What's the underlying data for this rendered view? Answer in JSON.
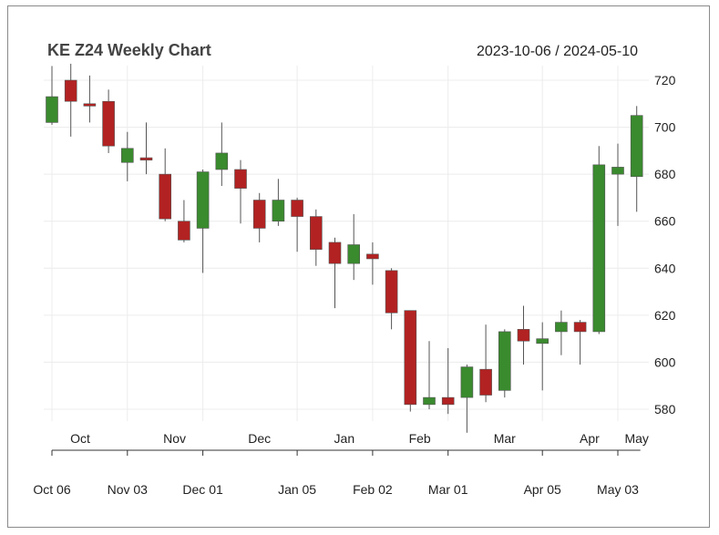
{
  "chart_data": {
    "type": "candlestick",
    "title": "KE Z24 Weekly Chart",
    "date_range": "2023-10-06 / 2024-05-10",
    "xlabel": "",
    "ylabel": "",
    "ylim": [
      570,
      725
    ],
    "y_ticks": [
      "720",
      "700",
      "680",
      "660",
      "640",
      "620",
      "600",
      "580"
    ],
    "y_tick_values": [
      720,
      700,
      680,
      660,
      640,
      620,
      600,
      580
    ],
    "grid": true,
    "up_color": "#3a8a2e",
    "down_color": "#b22222",
    "x_month_labels": [
      {
        "label": "Oct",
        "week": 1.5
      },
      {
        "label": "Nov",
        "week": 6.5
      },
      {
        "label": "Dec",
        "week": 11
      },
      {
        "label": "Jan",
        "week": 15.5
      },
      {
        "label": "Feb",
        "week": 19.5
      },
      {
        "label": "Mar",
        "week": 24
      },
      {
        "label": "Apr",
        "week": 28.5
      },
      {
        "label": "May",
        "week": 31
      }
    ],
    "x_date_labels": [
      {
        "label": "Oct 06",
        "week": 0
      },
      {
        "label": "Nov 03",
        "week": 4
      },
      {
        "label": "Dec 01",
        "week": 8
      },
      {
        "label": "Jan 05",
        "week": 13
      },
      {
        "label": "Feb 02",
        "week": 17
      },
      {
        "label": "Mar 01",
        "week": 21
      },
      {
        "label": "Apr 05",
        "week": 26
      },
      {
        "label": "May 03",
        "week": 30
      }
    ],
    "x_month_ticks": [
      0,
      4,
      8,
      13,
      17,
      21,
      26,
      30
    ],
    "candles": [
      {
        "date": "2023-10-06",
        "open": 702,
        "high": 726,
        "low": 701,
        "close": 713
      },
      {
        "date": "2023-10-13",
        "open": 720,
        "high": 727,
        "low": 696,
        "close": 711
      },
      {
        "date": "2023-10-20",
        "open": 710,
        "high": 722,
        "low": 702,
        "close": 709
      },
      {
        "date": "2023-10-27",
        "open": 711,
        "high": 716,
        "low": 689,
        "close": 692
      },
      {
        "date": "2023-11-03",
        "open": 685,
        "high": 698,
        "low": 677,
        "close": 691
      },
      {
        "date": "2023-11-10",
        "open": 687,
        "high": 702,
        "low": 680,
        "close": 686
      },
      {
        "date": "2023-11-17",
        "open": 680,
        "high": 691,
        "low": 660,
        "close": 661
      },
      {
        "date": "2023-11-24",
        "open": 660,
        "high": 669,
        "low": 651,
        "close": 652
      },
      {
        "date": "2023-12-01",
        "open": 657,
        "high": 682,
        "low": 638,
        "close": 681
      },
      {
        "date": "2023-12-08",
        "open": 682,
        "high": 702,
        "low": 675,
        "close": 689
      },
      {
        "date": "2023-12-15",
        "open": 682,
        "high": 686,
        "low": 659,
        "close": 674
      },
      {
        "date": "2023-12-22",
        "open": 669,
        "high": 672,
        "low": 651,
        "close": 657
      },
      {
        "date": "2023-12-29",
        "open": 660,
        "high": 678,
        "low": 658,
        "close": 669
      },
      {
        "date": "2024-01-05",
        "open": 669,
        "high": 670,
        "low": 647,
        "close": 662
      },
      {
        "date": "2024-01-12",
        "open": 662,
        "high": 665,
        "low": 641,
        "close": 648
      },
      {
        "date": "2024-01-19",
        "open": 651,
        "high": 653,
        "low": 623,
        "close": 642
      },
      {
        "date": "2024-01-26",
        "open": 642,
        "high": 663,
        "low": 635,
        "close": 650
      },
      {
        "date": "2024-02-02",
        "open": 646,
        "high": 651,
        "low": 633,
        "close": 644
      },
      {
        "date": "2024-02-09",
        "open": 639,
        "high": 640,
        "low": 614,
        "close": 621
      },
      {
        "date": "2024-02-16",
        "open": 622,
        "high": 622,
        "low": 579,
        "close": 582
      },
      {
        "date": "2024-02-23",
        "open": 582,
        "high": 609,
        "low": 580,
        "close": 585
      },
      {
        "date": "2024-03-01",
        "open": 585,
        "high": 606,
        "low": 578,
        "close": 582
      },
      {
        "date": "2024-03-08",
        "open": 585,
        "high": 599,
        "low": 570,
        "close": 598
      },
      {
        "date": "2024-03-15",
        "open": 597,
        "high": 616,
        "low": 583,
        "close": 586
      },
      {
        "date": "2024-03-22",
        "open": 588,
        "high": 614,
        "low": 585,
        "close": 613
      },
      {
        "date": "2024-03-29",
        "open": 614,
        "high": 624,
        "low": 599,
        "close": 609
      },
      {
        "date": "2024-04-05",
        "open": 608,
        "high": 617,
        "low": 588,
        "close": 610
      },
      {
        "date": "2024-04-12",
        "open": 613,
        "high": 622,
        "low": 603,
        "close": 617
      },
      {
        "date": "2024-04-19",
        "open": 617,
        "high": 618,
        "low": 599,
        "close": 613
      },
      {
        "date": "2024-04-26",
        "open": 613,
        "high": 692,
        "low": 612,
        "close": 684
      },
      {
        "date": "2024-05-03",
        "open": 680,
        "high": 693,
        "low": 658,
        "close": 683
      },
      {
        "date": "2024-05-10",
        "open": 679,
        "high": 709,
        "low": 664,
        "close": 705
      }
    ]
  }
}
